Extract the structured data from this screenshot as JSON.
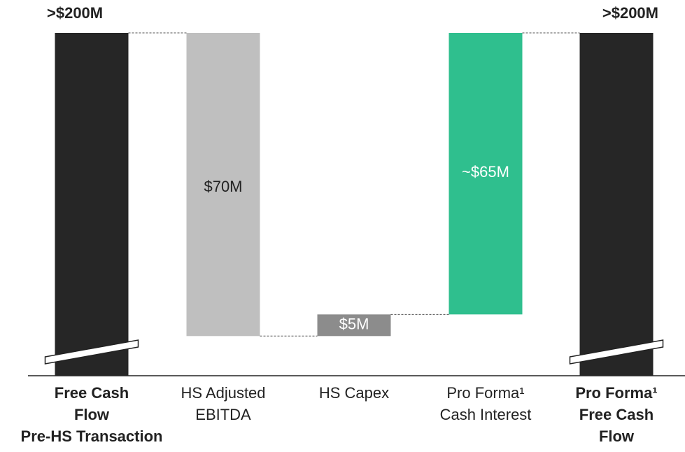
{
  "chart_data": {
    "type": "waterfall",
    "categories": [
      [
        "Free Cash",
        "Flow",
        "Pre-HS Transaction"
      ],
      [
        "HS Adjusted",
        "EBITDA"
      ],
      [
        "HS Capex"
      ],
      [
        "Pro Forma¹",
        "Cash Interest"
      ],
      [
        "Pro Forma¹",
        "Free Cash",
        "Flow"
      ]
    ],
    "values": [
      200,
      70,
      5,
      65,
      200
    ],
    "value_labels": [
      ">$200M",
      "$70M",
      "$5M",
      "~$65M",
      ">$200M"
    ],
    "kinds": [
      "total",
      "decrease",
      "increase",
      "increase",
      "total"
    ],
    "colors": [
      "#262626",
      "#bfbfbf",
      "#8c8c8c",
      "#2fbf8e",
      "#262626"
    ],
    "broken_axis": true
  }
}
